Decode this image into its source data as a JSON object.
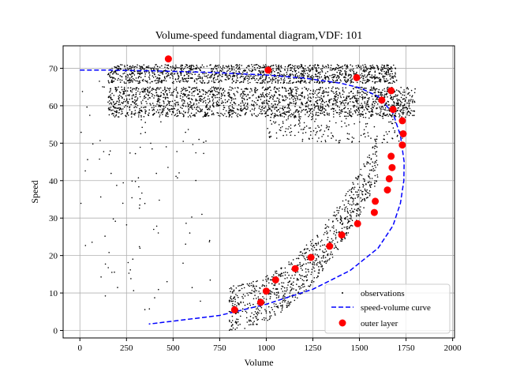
{
  "chart_data": {
    "type": "scatter",
    "title": "Volume-speed fundamental diagram,VDF: 101",
    "xlabel": "Volume",
    "ylabel": "Speed",
    "xlim": [
      -90,
      2010
    ],
    "ylim": [
      -2,
      76
    ],
    "xticks": [
      0,
      250,
      500,
      750,
      1000,
      1250,
      1500,
      1750,
      2000
    ],
    "yticks": [
      0,
      10,
      20,
      30,
      40,
      50,
      60,
      70
    ],
    "grid": true,
    "legend_position": "bottom-right",
    "colors": {
      "observations": "#000000",
      "curve": "#0000ff",
      "outer_layer": "#ff0000",
      "grid": "#b0b0b0"
    },
    "series": [
      {
        "name": "observations",
        "kind": "scatter",
        "clusters": [
          {
            "x": [
              150,
              1700
            ],
            "y": [
              66,
              71
            ],
            "n": 1400
          },
          {
            "x": [
              150,
              1800
            ],
            "y": [
              57,
              65
            ],
            "n": 1800
          },
          {
            "x": [
              1000,
              1750
            ],
            "y": [
              50,
              64
            ],
            "n": 300
          },
          {
            "x": [
              800,
              1600
            ],
            "y": [
              6,
              50
            ],
            "n": 900
          },
          {
            "x": [
              0,
              700
            ],
            "y": [
              3,
              68
            ],
            "n": 110
          }
        ]
      },
      {
        "name": "speed-volume curve",
        "kind": "line",
        "points": [
          [
            0,
            69.5
          ],
          [
            150,
            69.5
          ],
          [
            400,
            69.3
          ],
          [
            700,
            68.9
          ],
          [
            1000,
            68.2
          ],
          [
            1200,
            67.4
          ],
          [
            1400,
            66.0
          ],
          [
            1500,
            64.8
          ],
          [
            1600,
            62.5
          ],
          [
            1680,
            58.0
          ],
          [
            1720,
            52.0
          ],
          [
            1740,
            45.0
          ],
          [
            1738,
            40.0
          ],
          [
            1720,
            34.0
          ],
          [
            1680,
            28.0
          ],
          [
            1600,
            22.0
          ],
          [
            1450,
            16.0
          ],
          [
            1250,
            11.0
          ],
          [
            1000,
            7.0
          ],
          [
            750,
            4.0
          ],
          [
            500,
            2.5
          ],
          [
            370,
            1.7
          ]
        ]
      },
      {
        "name": "outer layer",
        "kind": "scatter",
        "points": [
          [
            475,
            72.5
          ],
          [
            1010,
            69.5
          ],
          [
            1485,
            67.5
          ],
          [
            1620,
            61.5
          ],
          [
            1670,
            64.0
          ],
          [
            1680,
            59.0
          ],
          [
            1730,
            56.0
          ],
          [
            1735,
            52.5
          ],
          [
            1730,
            49.5
          ],
          [
            1670,
            46.5
          ],
          [
            1675,
            43.5
          ],
          [
            1660,
            40.5
          ],
          [
            1650,
            37.5
          ],
          [
            1585,
            34.5
          ],
          [
            1580,
            31.5
          ],
          [
            1490,
            28.5
          ],
          [
            1405,
            25.5
          ],
          [
            1340,
            22.5
          ],
          [
            1240,
            19.5
          ],
          [
            1155,
            16.5
          ],
          [
            1050,
            13.5
          ],
          [
            1000,
            10.5
          ],
          [
            970,
            7.5
          ],
          [
            830,
            5.5
          ]
        ]
      }
    ]
  }
}
